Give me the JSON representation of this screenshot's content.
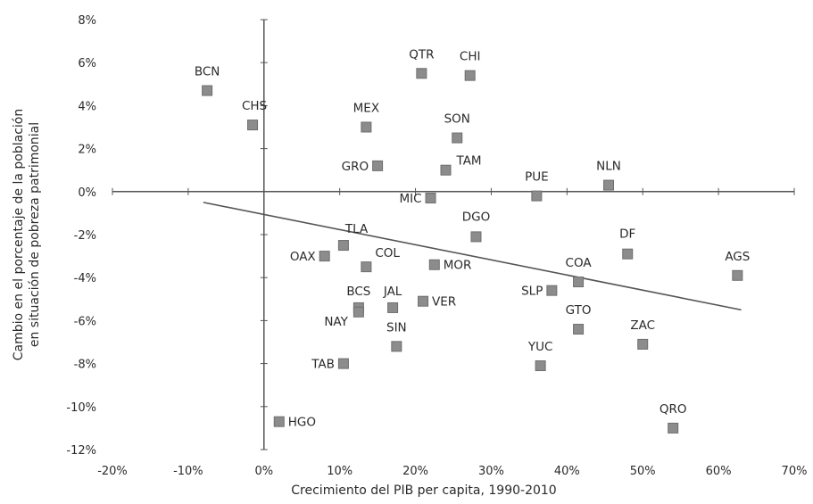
{
  "chart_data": {
    "type": "scatter",
    "title": "",
    "xlabel": "Crecimiento del PIB per capita, 1990-2010",
    "ylabel_lines": [
      "Cambio en el porcentaje de la población",
      "en situación de pobreza patrimonial"
    ],
    "xlim": [
      -20,
      70
    ],
    "ylim": [
      -12,
      8
    ],
    "x_ticks": [
      -20,
      -10,
      0,
      10,
      20,
      30,
      40,
      50,
      60,
      70
    ],
    "y_ticks": [
      -12,
      -10,
      -8,
      -6,
      -4,
      -2,
      0,
      2,
      4,
      6,
      8
    ],
    "x_tick_labels": [
      "-20%",
      "-10%",
      "0%",
      "10%",
      "20%",
      "30%",
      "40%",
      "50%",
      "60%",
      "70%"
    ],
    "y_tick_labels": [
      "-12%",
      "-10%",
      "-8%",
      "-6%",
      "-4%",
      "-2%",
      "0%",
      "2%",
      "4%",
      "6%",
      "8%"
    ],
    "grid": false,
    "marker_color": "#8c8c8c",
    "line_color": "#555555",
    "points": [
      {
        "label": "BCN",
        "x": -7.5,
        "y": 4.7
      },
      {
        "label": "CHS",
        "x": -1.5,
        "y": 3.1
      },
      {
        "label": "QTR",
        "x": 20.8,
        "y": 5.5
      },
      {
        "label": "CHI",
        "x": 27.2,
        "y": 5.4
      },
      {
        "label": "MEX",
        "x": 13.5,
        "y": 3.0
      },
      {
        "label": "SON",
        "x": 25.5,
        "y": 2.5
      },
      {
        "label": "GRO",
        "x": 15.0,
        "y": 1.2
      },
      {
        "label": "TAM",
        "x": 24.0,
        "y": 1.0
      },
      {
        "label": "PUE",
        "x": 36.0,
        "y": -0.2
      },
      {
        "label": "NLN",
        "x": 45.5,
        "y": 0.3
      },
      {
        "label": "MIC",
        "x": 22.0,
        "y": -0.3
      },
      {
        "label": "DGO",
        "x": 28.0,
        "y": -2.1
      },
      {
        "label": "TLA",
        "x": 10.5,
        "y": -2.5
      },
      {
        "label": "DF",
        "x": 48.0,
        "y": -2.9
      },
      {
        "label": "AGS",
        "x": 62.5,
        "y": -3.9
      },
      {
        "label": "OAX",
        "x": 8.0,
        "y": -3.0
      },
      {
        "label": "COL",
        "x": 13.5,
        "y": -3.5
      },
      {
        "label": "MOR",
        "x": 22.5,
        "y": -3.4
      },
      {
        "label": "COA",
        "x": 41.5,
        "y": -4.2
      },
      {
        "label": "SLP",
        "x": 38.0,
        "y": -4.6
      },
      {
        "label": "BCS",
        "x": 12.5,
        "y": -5.4
      },
      {
        "label": "JAL",
        "x": 17.0,
        "y": -5.4
      },
      {
        "label": "VER",
        "x": 21.0,
        "y": -5.1
      },
      {
        "label": "NAY",
        "x": 12.5,
        "y": -5.6
      },
      {
        "label": "GTO",
        "x": 41.5,
        "y": -6.4
      },
      {
        "label": "SIN",
        "x": 17.5,
        "y": -7.2
      },
      {
        "label": "ZAC",
        "x": 50.0,
        "y": -7.1
      },
      {
        "label": "YUC",
        "x": 36.5,
        "y": -8.1
      },
      {
        "label": "TAB",
        "x": 10.5,
        "y": -8.0
      },
      {
        "label": "HGO",
        "x": 2.0,
        "y": -10.7
      },
      {
        "label": "QRO",
        "x": 54.0,
        "y": -11.0
      }
    ],
    "trendline": {
      "x": [
        -8,
        63
      ],
      "y": [
        -0.5,
        -5.5
      ]
    }
  }
}
